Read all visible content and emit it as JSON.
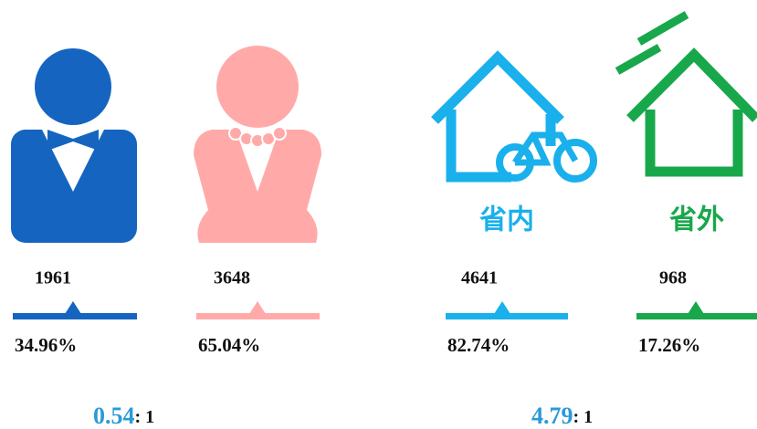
{
  "gender": {
    "items": [
      {
        "count": 1961,
        "percent": "34.96%",
        "color": "#1565c0"
      },
      {
        "count": 3648,
        "percent": "65.04%",
        "color": "#ffaaa9"
      }
    ],
    "ratio": {
      "value": "0.54",
      "suffix": ": 1"
    }
  },
  "origin": {
    "items": [
      {
        "label": "省内",
        "count": 4641,
        "percent": "82.74%",
        "color": "#19b0ec"
      },
      {
        "label": "省外",
        "count": 968,
        "percent": "17.26%",
        "color": "#18a84b"
      }
    ],
    "ratio": {
      "value": "4.79",
      "suffix": ": 1"
    }
  }
}
